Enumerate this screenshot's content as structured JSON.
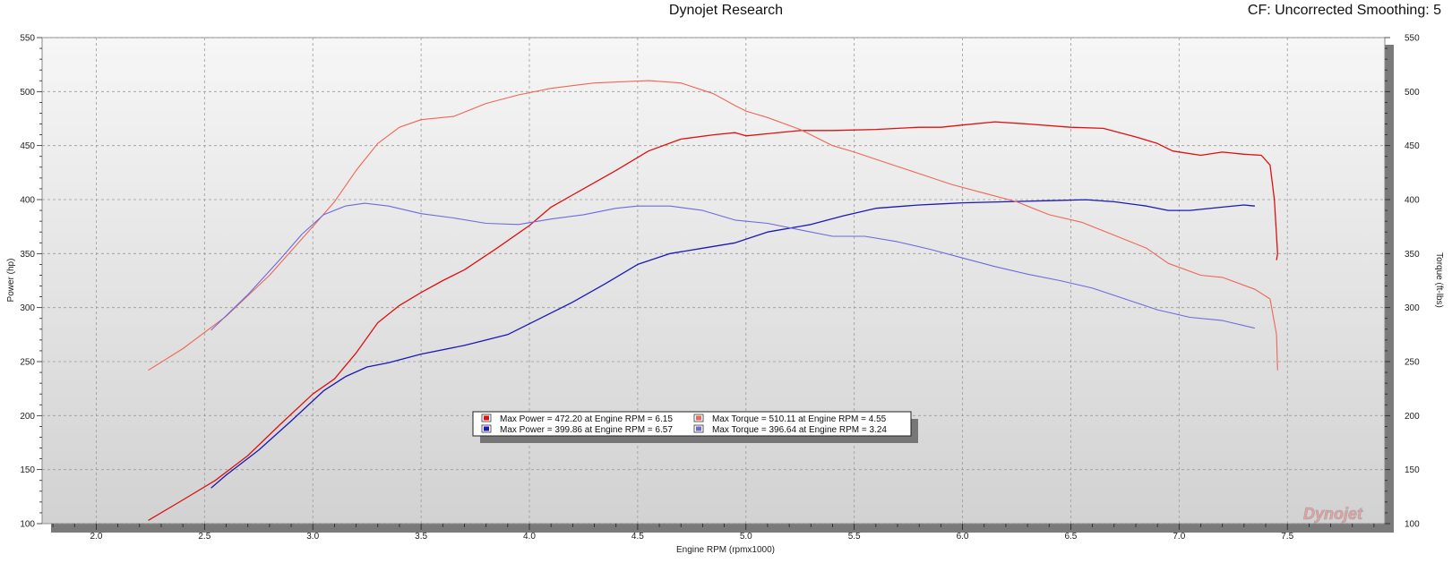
{
  "header": {
    "title": "Dynojet Research",
    "cf_info": "CF: Uncorrected Smoothing: 5"
  },
  "chart_data": {
    "type": "line",
    "xlabel": "Engine RPM (rpmx1000)",
    "ylabel_left": "Power (hp)",
    "ylabel_right": "Torque (ft-lbs)",
    "xlim": [
      1.75,
      7.95
    ],
    "ylim": [
      100,
      550
    ],
    "x_ticks": [
      "2.0",
      "2.5",
      "3.0",
      "3.5",
      "4.0",
      "4.5",
      "5.0",
      "5.5",
      "6.0",
      "6.5",
      "7.0",
      "7.5"
    ],
    "y_ticks_left": [
      "550",
      "500",
      "450",
      "400",
      "350",
      "300",
      "250",
      "200",
      "150",
      "100"
    ],
    "y_ticks_right": [
      "550",
      "500",
      "450",
      "400",
      "350",
      "300",
      "250",
      "200",
      "150",
      "100"
    ],
    "grid": true,
    "legend_position": "bottom-center",
    "watermark": "Dynojet",
    "series": [
      {
        "color": "#dd1111",
        "axis": "left",
        "points": [
          [
            2.24,
            103
          ],
          [
            2.4,
            122
          ],
          [
            2.55,
            140
          ],
          [
            2.7,
            163
          ],
          [
            2.85,
            192
          ],
          [
            3.0,
            220
          ],
          [
            3.1,
            234
          ],
          [
            3.2,
            258
          ],
          [
            3.3,
            286
          ],
          [
            3.4,
            302
          ],
          [
            3.5,
            314
          ],
          [
            3.6,
            325
          ],
          [
            3.7,
            335
          ],
          [
            3.85,
            355
          ],
          [
            4.0,
            376
          ],
          [
            4.1,
            393
          ],
          [
            4.25,
            410
          ],
          [
            4.4,
            427
          ],
          [
            4.55,
            445
          ],
          [
            4.7,
            456
          ],
          [
            4.85,
            460
          ],
          [
            4.95,
            462
          ],
          [
            5.0,
            459
          ],
          [
            5.1,
            461
          ],
          [
            5.25,
            464
          ],
          [
            5.4,
            464
          ],
          [
            5.6,
            465
          ],
          [
            5.8,
            467
          ],
          [
            5.9,
            467
          ],
          [
            6.0,
            469
          ],
          [
            6.15,
            472
          ],
          [
            6.3,
            470
          ],
          [
            6.5,
            467
          ],
          [
            6.65,
            466
          ],
          [
            6.8,
            458
          ],
          [
            6.9,
            452
          ],
          [
            6.97,
            445
          ],
          [
            7.1,
            441
          ],
          [
            7.2,
            444
          ],
          [
            7.3,
            442
          ],
          [
            7.38,
            441
          ],
          [
            7.42,
            432
          ],
          [
            7.44,
            400
          ],
          [
            7.455,
            350
          ],
          [
            7.45,
            344
          ]
        ]
      },
      {
        "color": "#1a1ab4",
        "axis": "left",
        "points": [
          [
            2.53,
            133
          ],
          [
            2.6,
            145
          ],
          [
            2.75,
            168
          ],
          [
            2.9,
            195
          ],
          [
            3.05,
            223
          ],
          [
            3.15,
            236
          ],
          [
            3.25,
            245
          ],
          [
            3.35,
            249
          ],
          [
            3.5,
            257
          ],
          [
            3.7,
            265
          ],
          [
            3.9,
            275
          ],
          [
            4.05,
            290
          ],
          [
            4.2,
            305
          ],
          [
            4.35,
            322
          ],
          [
            4.5,
            340
          ],
          [
            4.65,
            350
          ],
          [
            4.8,
            355
          ],
          [
            4.95,
            360
          ],
          [
            5.1,
            370
          ],
          [
            5.3,
            377
          ],
          [
            5.45,
            385
          ],
          [
            5.6,
            392
          ],
          [
            5.8,
            395
          ],
          [
            5.9,
            396
          ],
          [
            6.0,
            397
          ],
          [
            6.2,
            398
          ],
          [
            6.4,
            399
          ],
          [
            6.57,
            399.9
          ],
          [
            6.7,
            398
          ],
          [
            6.85,
            394
          ],
          [
            6.95,
            390
          ],
          [
            7.05,
            390
          ],
          [
            7.2,
            393
          ],
          [
            7.3,
            395
          ],
          [
            7.35,
            394
          ]
        ]
      },
      {
        "color": "#ee6655",
        "axis": "right",
        "points": [
          [
            2.24,
            242
          ],
          [
            2.4,
            262
          ],
          [
            2.6,
            292
          ],
          [
            2.8,
            330
          ],
          [
            3.0,
            375
          ],
          [
            3.1,
            398
          ],
          [
            3.2,
            427
          ],
          [
            3.3,
            452
          ],
          [
            3.4,
            467
          ],
          [
            3.5,
            474
          ],
          [
            3.65,
            477
          ],
          [
            3.8,
            489
          ],
          [
            3.95,
            497
          ],
          [
            4.1,
            503
          ],
          [
            4.3,
            508
          ],
          [
            4.55,
            510.1
          ],
          [
            4.7,
            508
          ],
          [
            4.85,
            498
          ],
          [
            4.95,
            487
          ],
          [
            5.0,
            482
          ],
          [
            5.1,
            476
          ],
          [
            5.25,
            465
          ],
          [
            5.4,
            450
          ],
          [
            5.5,
            444
          ],
          [
            5.65,
            434
          ],
          [
            5.8,
            424
          ],
          [
            5.95,
            414
          ],
          [
            6.1,
            406
          ],
          [
            6.25,
            398
          ],
          [
            6.4,
            386
          ],
          [
            6.55,
            379
          ],
          [
            6.7,
            367
          ],
          [
            6.85,
            355
          ],
          [
            6.95,
            341
          ],
          [
            7.1,
            330
          ],
          [
            7.2,
            328
          ],
          [
            7.35,
            317
          ],
          [
            7.42,
            308
          ],
          [
            7.45,
            275
          ],
          [
            7.455,
            242
          ]
        ]
      },
      {
        "color": "#6b6bdd",
        "axis": "right",
        "points": [
          [
            2.53,
            279
          ],
          [
            2.7,
            312
          ],
          [
            2.85,
            345
          ],
          [
            2.95,
            368
          ],
          [
            3.05,
            386
          ],
          [
            3.15,
            394
          ],
          [
            3.24,
            396.6
          ],
          [
            3.35,
            394
          ],
          [
            3.5,
            387
          ],
          [
            3.65,
            383
          ],
          [
            3.8,
            378
          ],
          [
            3.95,
            377
          ],
          [
            4.1,
            382
          ],
          [
            4.25,
            386
          ],
          [
            4.4,
            392
          ],
          [
            4.5,
            394
          ],
          [
            4.65,
            394
          ],
          [
            4.8,
            390
          ],
          [
            4.95,
            381
          ],
          [
            5.1,
            378
          ],
          [
            5.25,
            372
          ],
          [
            5.4,
            366
          ],
          [
            5.55,
            366
          ],
          [
            5.7,
            361
          ],
          [
            5.85,
            354
          ],
          [
            6.0,
            346
          ],
          [
            6.15,
            338
          ],
          [
            6.3,
            331
          ],
          [
            6.45,
            325
          ],
          [
            6.6,
            318
          ],
          [
            6.75,
            308
          ],
          [
            6.9,
            298
          ],
          [
            7.05,
            291
          ],
          [
            7.2,
            288
          ],
          [
            7.35,
            281
          ]
        ]
      }
    ],
    "legend": [
      {
        "color": "#dd1111",
        "text": "Max Power = 472.20 at Engine RPM = 6.15"
      },
      {
        "color": "#ee6655",
        "text": "Max Torque = 510.11 at Engine RPM = 4.55"
      },
      {
        "color": "#1a1ab4",
        "text": "Max Power = 399.86 at Engine RPM = 6.57"
      },
      {
        "color": "#6b6bdd",
        "text": "Max Torque = 396.64 at Engine RPM = 3.24"
      }
    ]
  }
}
